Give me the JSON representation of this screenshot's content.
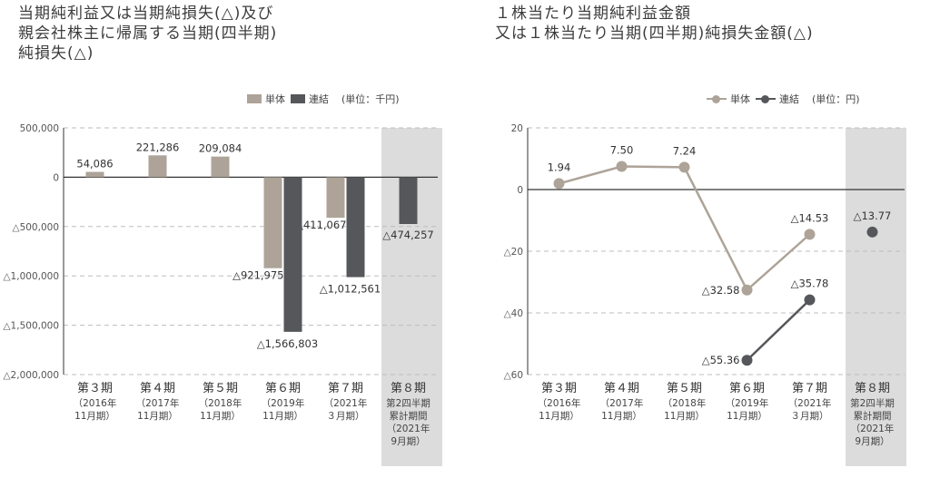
{
  "titles": {
    "left": "当期純利益又は当期純損失(△)及び\n親会社株主に帰属する当期(四半期)\n純損失(△)",
    "right": "１株当たり当期純利益金額\n又は１株当たり当期(四半期)純損失金額(△)"
  },
  "chart_data": [
    {
      "type": "bar",
      "categories": [
        "第３期",
        "第４期",
        "第５期",
        "第６期",
        "第７期",
        "第８期"
      ],
      "category_sublabels": [
        [
          "（2016年",
          " 11月期）"
        ],
        [
          "（2017年",
          " 11月期）"
        ],
        [
          "（2018年",
          " 11月期）"
        ],
        [
          "（2019年",
          " 11月期）"
        ],
        [
          "（2021年",
          " ３月期）"
        ],
        [
          "第2四半期",
          "累計期間",
          "（2021年",
          " 9月期）"
        ]
      ],
      "highlight_category": "第８期",
      "series": [
        {
          "name": "単体",
          "color": "#ada398",
          "values": [
            54086,
            221286,
            209084,
            -921975,
            -411067,
            null
          ],
          "labels": [
            "54,086",
            "221,286",
            "209,084",
            "△921,975",
            "△411,067",
            ""
          ]
        },
        {
          "name": "連結",
          "color": "#55575a",
          "values": [
            null,
            null,
            null,
            -1566803,
            -1012561,
            -474257
          ],
          "labels": [
            "",
            "",
            "",
            "△1,566,803",
            "△1,012,561",
            "△474,257"
          ]
        }
      ],
      "unit": "(単位：千円)",
      "yticks": [
        500000,
        0,
        -500000,
        -1000000,
        -1500000,
        -2000000
      ],
      "ytick_labels": [
        "500,000",
        "0",
        "△500,000",
        "△1,000,000",
        "△1,500,000",
        "△2,000,000"
      ],
      "ylim": [
        -2000000,
        500000
      ],
      "grid": true,
      "legend": "top-right"
    },
    {
      "type": "line",
      "categories": [
        "第３期",
        "第４期",
        "第５期",
        "第６期",
        "第７期",
        "第８期"
      ],
      "category_sublabels": [
        [
          "（2016年",
          " 11月期）"
        ],
        [
          "（2017年",
          " 11月期）"
        ],
        [
          "（2018年",
          " 11月期）"
        ],
        [
          "（2019年",
          " 11月期）"
        ],
        [
          "（2021年",
          " ３月期）"
        ],
        [
          "第2四半期",
          "累計期間",
          "（2021年",
          " 9月期）"
        ]
      ],
      "highlight_category": "第８期",
      "series": [
        {
          "name": "単体",
          "color": "#ada398",
          "values": [
            1.94,
            7.5,
            7.24,
            -32.58,
            -14.53,
            null
          ],
          "labels": [
            "1.94",
            "7.50",
            "7.24",
            "△32.58",
            "△14.53",
            ""
          ]
        },
        {
          "name": "連結",
          "color": "#55575a",
          "values": [
            null,
            null,
            null,
            -55.36,
            -35.78,
            -13.77
          ],
          "labels": [
            "",
            "",
            "",
            "△55.36",
            "△35.78",
            "△13.77"
          ]
        }
      ],
      "unit": "(単位：円)",
      "yticks": [
        20,
        0,
        -20,
        -40,
        -60
      ],
      "ytick_labels": [
        "20",
        "0",
        "△20",
        "△40",
        "△60"
      ],
      "ylim": [
        -60,
        20
      ],
      "grid": true,
      "legend": "top-right"
    }
  ]
}
